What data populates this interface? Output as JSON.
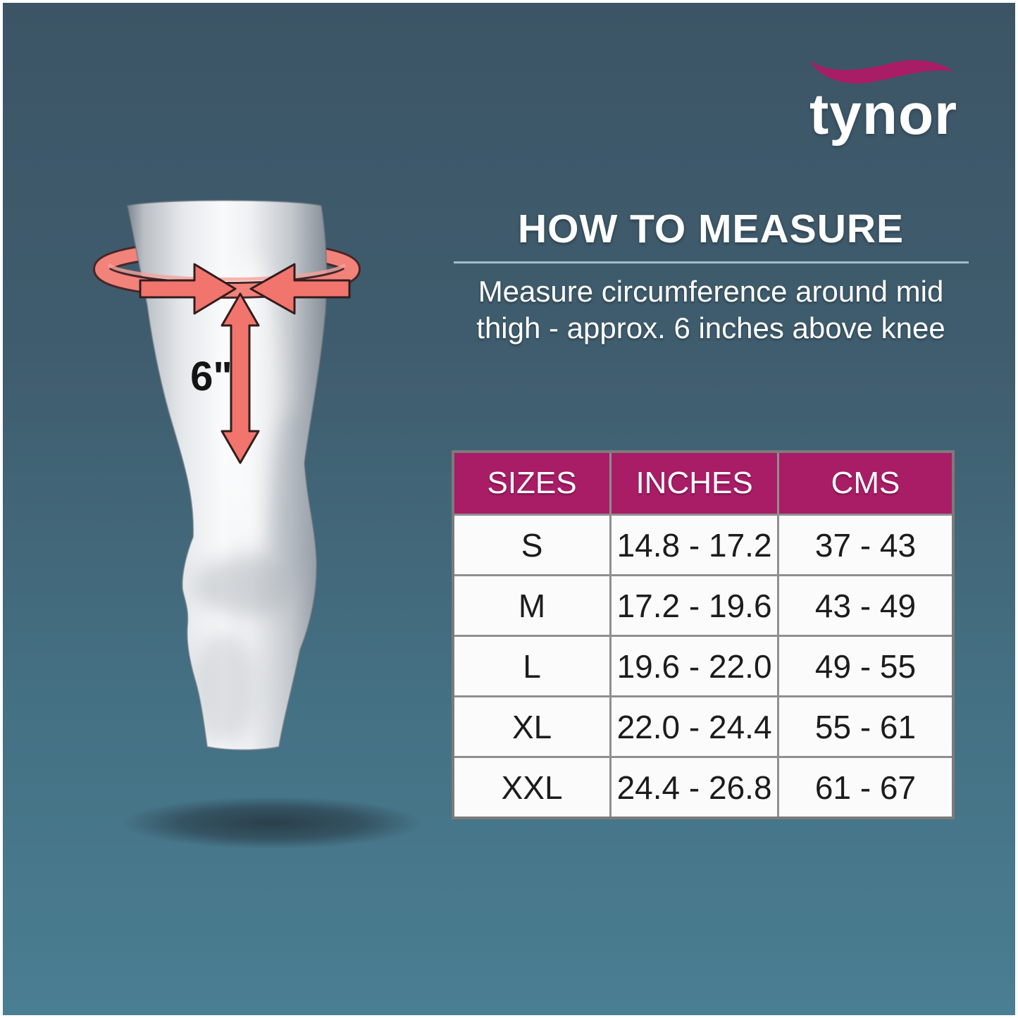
{
  "theme": {
    "background_top": "#3c5566",
    "background_bottom": "#4a7e92",
    "magenta": "#a91c66",
    "salmon": "#f1756d",
    "text_white": "#ffffff"
  },
  "logo": {
    "brand": "tynor"
  },
  "how_to_measure": {
    "title": "HOW TO MEASURE",
    "description_line1": "Measure circumference around mid",
    "description_line2": "thigh - approx. 6 inches above knee"
  },
  "diagram": {
    "length_label": "6\""
  },
  "size_table": {
    "columns": [
      "SIZES",
      "INCHES",
      "CMS"
    ],
    "rows": [
      {
        "size": "S",
        "inches": "14.8 - 17.2",
        "cms": "37 - 43"
      },
      {
        "size": "M",
        "inches": "17.2 - 19.6",
        "cms": "43 - 49"
      },
      {
        "size": "L",
        "inches": "19.6 - 22.0",
        "cms": "49 - 55"
      },
      {
        "size": "XL",
        "inches": "22.0 - 24.4",
        "cms": "55 - 61"
      },
      {
        "size": "XXL",
        "inches": "24.4 - 26.8",
        "cms": "61 - 67"
      }
    ]
  }
}
